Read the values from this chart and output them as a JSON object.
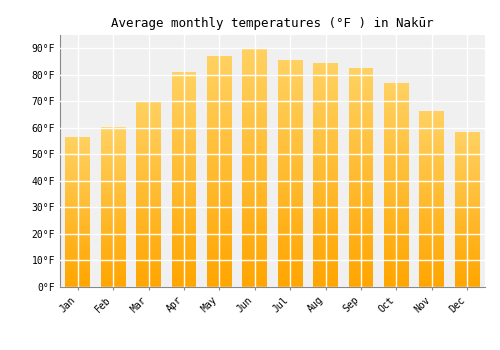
{
  "title": "Average monthly temperatures (°F ) in Nakūr",
  "months": [
    "Jan",
    "Feb",
    "Mar",
    "Apr",
    "May",
    "Jun",
    "Jul",
    "Aug",
    "Sep",
    "Oct",
    "Nov",
    "Dec"
  ],
  "values": [
    56.5,
    60.5,
    70.0,
    81.0,
    87.0,
    90.0,
    85.5,
    84.5,
    82.5,
    77.0,
    66.5,
    58.5
  ],
  "background_color": "#FFFFFF",
  "plot_bg_color": "#F0F0F0",
  "grid_color": "#FFFFFF",
  "bar_color_bottom": "#FFA500",
  "bar_color_top": "#FFD060",
  "ylim": [
    0,
    95
  ],
  "yticks": [
    0,
    10,
    20,
    30,
    40,
    50,
    60,
    70,
    80,
    90
  ],
  "ytick_labels": [
    "0°F",
    "10°F",
    "20°F",
    "30°F",
    "40°F",
    "50°F",
    "60°F",
    "70°F",
    "80°F",
    "90°F"
  ],
  "title_fontsize": 9,
  "tick_fontsize": 7,
  "font_family": "monospace",
  "bar_width": 0.7
}
